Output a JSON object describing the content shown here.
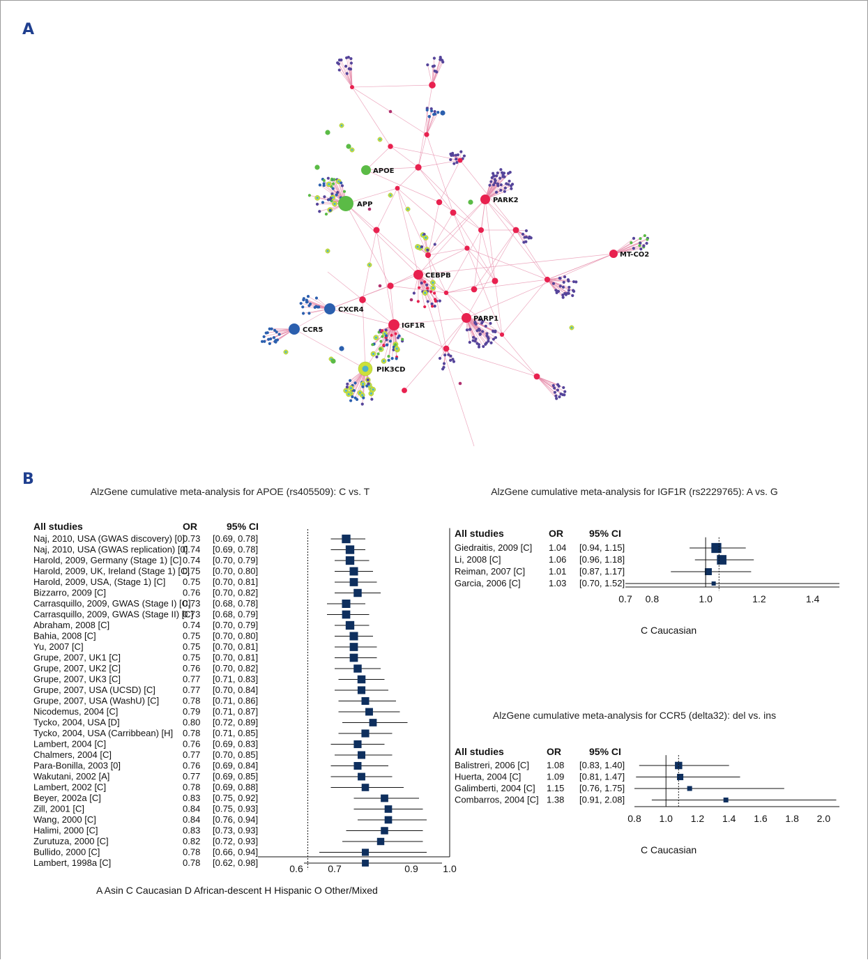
{
  "panels": {
    "a": "A",
    "b": "B"
  },
  "network": {
    "labels": [
      "APOE",
      "APP",
      "PARK2",
      "MT-CO2",
      "CEBPB",
      "CXCR4",
      "CCR5",
      "IGF1R",
      "PARP1",
      "PIK3CD"
    ],
    "colors": {
      "edge": "#e58aa8",
      "gene_red": "#e8214f",
      "green": "#5bbb46",
      "blue": "#2b5fae",
      "purple": "#55449a",
      "magenta": "#b0306e",
      "yellow_ring": "#cde03a",
      "cyan_core": "#4fb3c9"
    }
  },
  "chart_data": [
    {
      "type": "forest",
      "title": "AlzGene cumulative meta-analysis for APOE (rs405509): C vs. T",
      "header": {
        "study": "All studies",
        "or": "OR",
        "ci": "95% CI"
      },
      "xticks": [
        0.6,
        0.7,
        0.9,
        1.0
      ],
      "xticklabels": [
        "0.6",
        "0.7",
        "0.9",
        "1.0"
      ],
      "xlim": [
        0.5,
        1.0
      ],
      "reference_line": 0.63,
      "rows": [
        {
          "study": "Naj, 2010, USA (GWAS discovery) [0]",
          "or": 0.73,
          "ci_text": "[0.69, 0.78]",
          "ci": [
            0.69,
            0.78
          ]
        },
        {
          "study": "Naj, 2010, USA (GWAS replication) [0]",
          "or": 0.74,
          "ci_text": "[0.69, 0.78]",
          "ci": [
            0.69,
            0.78
          ]
        },
        {
          "study": "Harold, 2009, Germany (Stage 1) [C]",
          "or": 0.74,
          "ci_text": "[0.70, 0.79]",
          "ci": [
            0.7,
            0.79
          ]
        },
        {
          "study": "Harold, 2009, UK, Ireland (Stage 1) [C]",
          "or": 0.75,
          "ci_text": "[0.70, 0.80]",
          "ci": [
            0.7,
            0.8
          ]
        },
        {
          "study": "Harold, 2009, USA, (Stage 1) [C]",
          "or": 0.75,
          "ci_text": "[0.70, 0.81]",
          "ci": [
            0.7,
            0.81
          ]
        },
        {
          "study": "Bizzarro, 2009 [C]",
          "or": 0.76,
          "ci_text": "[0.70, 0.82]",
          "ci": [
            0.7,
            0.82
          ]
        },
        {
          "study": "Carrasquillo, 2009, GWAS (Stage I) [C]",
          "or": 0.73,
          "ci_text": "[0.68, 0.78]",
          "ci": [
            0.68,
            0.78
          ]
        },
        {
          "study": "Carrasquillo, 2009, GWAS (Stage II) [C]",
          "or": 0.73,
          "ci_text": "[0.68, 0.79]",
          "ci": [
            0.68,
            0.79
          ]
        },
        {
          "study": "Abraham, 2008 [C]",
          "or": 0.74,
          "ci_text": "[0.70, 0.79]",
          "ci": [
            0.7,
            0.79
          ]
        },
        {
          "study": "Bahia, 2008 [C]",
          "or": 0.75,
          "ci_text": "[0.70, 0.80]",
          "ci": [
            0.7,
            0.8
          ]
        },
        {
          "study": "Yu, 2007 [C]",
          "or": 0.75,
          "ci_text": "[0.70, 0.81]",
          "ci": [
            0.7,
            0.81
          ]
        },
        {
          "study": "Grupe, 2007, UK1 [C]",
          "or": 0.75,
          "ci_text": "[0.70, 0.81]",
          "ci": [
            0.7,
            0.81
          ]
        },
        {
          "study": "Grupe, 2007, UK2 [C]",
          "or": 0.76,
          "ci_text": "[0.70, 0.82]",
          "ci": [
            0.7,
            0.82
          ]
        },
        {
          "study": "Grupe, 2007, UK3 [C]",
          "or": 0.77,
          "ci_text": "[0.71, 0.83]",
          "ci": [
            0.71,
            0.83
          ]
        },
        {
          "study": "Grupe, 2007, USA (UCSD) [C]",
          "or": 0.77,
          "ci_text": "[0.70, 0.84]",
          "ci": [
            0.7,
            0.84
          ]
        },
        {
          "study": "Grupe, 2007, USA (WashU) [C]",
          "or": 0.78,
          "ci_text": "[0.71, 0.86]",
          "ci": [
            0.71,
            0.86
          ]
        },
        {
          "study": "Nicodemus, 2004 [C]",
          "or": 0.79,
          "ci_text": "[0.71, 0.87]",
          "ci": [
            0.71,
            0.87
          ]
        },
        {
          "study": "Tycko, 2004, USA [D]",
          "or": 0.8,
          "ci_text": "[0.72, 0.89]",
          "ci": [
            0.72,
            0.89
          ]
        },
        {
          "study": "Tycko, 2004, USA (Carribbean) [H]",
          "or": 0.78,
          "ci_text": "[0.71, 0.85]",
          "ci": [
            0.71,
            0.85
          ]
        },
        {
          "study": "Lambert, 2004 [C]",
          "or": 0.76,
          "ci_text": "[0.69, 0.83]",
          "ci": [
            0.69,
            0.83
          ]
        },
        {
          "study": "Chalmers, 2004 [C]",
          "or": 0.77,
          "ci_text": "[0.70, 0.85]",
          "ci": [
            0.7,
            0.85
          ]
        },
        {
          "study": "Para-Bonilla, 2003 [0]",
          "or": 0.76,
          "ci_text": "[0.69, 0.84]",
          "ci": [
            0.69,
            0.84
          ]
        },
        {
          "study": "Wakutani, 2002 [A]",
          "or": 0.77,
          "ci_text": "[0.69, 0.85]",
          "ci": [
            0.69,
            0.85
          ]
        },
        {
          "study": "Lambert, 2002 [C]",
          "or": 0.78,
          "ci_text": "[0.69, 0.88]",
          "ci": [
            0.69,
            0.88
          ]
        },
        {
          "study": "Beyer, 2002a [C]",
          "or": 0.83,
          "ci_text": "[0.75, 0.92]",
          "ci": [
            0.75,
            0.92
          ]
        },
        {
          "study": "Zill, 2001 [C]",
          "or": 0.84,
          "ci_text": "[0.75, 0.93]",
          "ci": [
            0.75,
            0.93
          ]
        },
        {
          "study": "Wang, 2000 [C]",
          "or": 0.84,
          "ci_text": "[0.76, 0.94]",
          "ci": [
            0.76,
            0.94
          ]
        },
        {
          "study": "Halimi, 2000 [C]",
          "or": 0.83,
          "ci_text": "[0.73, 0.93]",
          "ci": [
            0.73,
            0.93
          ]
        },
        {
          "study": "Zurutuza, 2000 [C]",
          "or": 0.82,
          "ci_text": "[0.72, 0.93]",
          "ci": [
            0.72,
            0.93
          ]
        },
        {
          "study": "Bullido, 2000 [C]",
          "or": 0.78,
          "ci_text": "[0.66, 0.94]",
          "ci": [
            0.66,
            0.94
          ]
        },
        {
          "study": "Lambert, 1998a [C]",
          "or": 0.78,
          "ci_text": "[0.62, 0.98]",
          "ci": [
            0.62,
            0.98
          ]
        }
      ],
      "legend": "A Asin   C Caucasian     D African-descent     H Hispanic     O Other/Mixed"
    },
    {
      "type": "forest",
      "title": "AlzGene cumulative meta-analysis for IGF1R (rs2229765): A vs. G",
      "header": {
        "study": "All studies",
        "or": "OR",
        "ci": "95% CI"
      },
      "xticks": [
        0.7,
        0.8,
        1.0,
        1.2,
        1.4
      ],
      "xticklabels": [
        "0.7",
        "0.8",
        "1.0",
        "1.2",
        "1.4"
      ],
      "xlim": [
        0.7,
        1.5
      ],
      "null_line": 1.0,
      "reference_line": 1.05,
      "rows": [
        {
          "study": "Giedraitis, 2009 [C]",
          "or": 1.04,
          "ci_text": "[0.94, 1.15]",
          "ci": [
            0.94,
            1.15
          ]
        },
        {
          "study": "Li, 2008 [C]",
          "or": 1.06,
          "ci_text": "[0.96, 1.18]",
          "ci": [
            0.96,
            1.18
          ]
        },
        {
          "study": "Reiman, 2007 [C]",
          "or": 1.01,
          "ci_text": "[0.87, 1.17]",
          "ci": [
            0.87,
            1.17
          ]
        },
        {
          "study": "Garcia, 2006 [C]",
          "or": 1.03,
          "ci_text": "[0.70, 1.52]",
          "ci": [
            0.7,
            1.52
          ]
        }
      ],
      "legend": "C Caucasian"
    },
    {
      "type": "forest",
      "title": "AlzGene cumulative meta-analysis for CCR5 (delta32): del vs. ins",
      "header": {
        "study": "All studies",
        "or": "OR",
        "ci": "95% CI"
      },
      "xticks": [
        0.8,
        1.0,
        1.2,
        1.4,
        1.6,
        1.8,
        2.0
      ],
      "xticklabels": [
        "0.8",
        "1.0",
        "1.2",
        "1.4",
        "1.6",
        "1.8",
        "2.0"
      ],
      "xlim": [
        0.8,
        2.1
      ],
      "null_line": 1.0,
      "reference_line": 1.08,
      "rows": [
        {
          "study": "Balistreri, 2006 [C]",
          "or": 1.08,
          "ci_text": "[0.83, 1.40]",
          "ci": [
            0.83,
            1.4
          ]
        },
        {
          "study": "Huerta, 2004 [C]",
          "or": 1.09,
          "ci_text": "[0.81, 1.47]",
          "ci": [
            0.81,
            1.47
          ]
        },
        {
          "study": "Galimberti, 2004 [C]",
          "or": 1.15,
          "ci_text": "[0.76, 1.75]",
          "ci": [
            0.76,
            1.75
          ]
        },
        {
          "study": "Combarros, 2004 [C]",
          "or": 1.38,
          "ci_text": "[0.91, 2.08]",
          "ci": [
            0.91,
            2.08
          ]
        }
      ],
      "legend": "C Caucasian"
    }
  ]
}
